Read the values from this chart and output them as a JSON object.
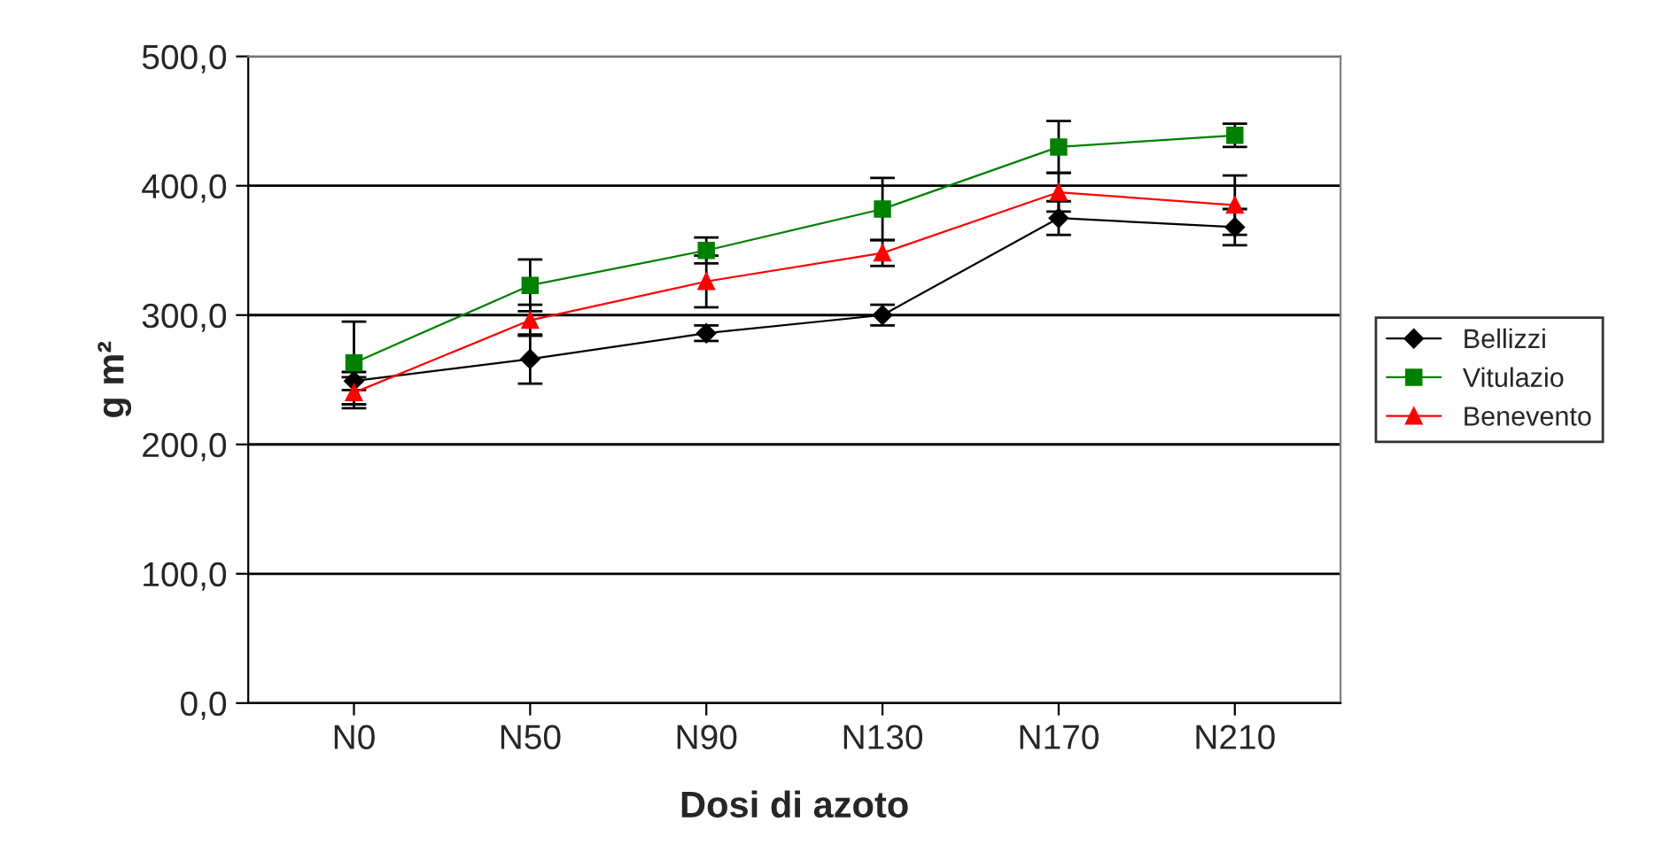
{
  "chart_data": {
    "type": "line",
    "xlabel": "Dosi di azoto",
    "ylabel": "g m²",
    "categories": [
      "N0",
      "N50",
      "N90",
      "N130",
      "N170",
      "N210"
    ],
    "ylim": [
      0,
      500
    ],
    "yticks": [
      {
        "value": 0,
        "label": "0,0"
      },
      {
        "value": 100,
        "label": "100,0"
      },
      {
        "value": 200,
        "label": "200,0"
      },
      {
        "value": 300,
        "label": "300,0"
      },
      {
        "value": 400,
        "label": "400,0"
      },
      {
        "value": 500,
        "label": "500,0"
      }
    ],
    "grid": "y",
    "legend": "right",
    "series": [
      {
        "name": "Bellizzi",
        "color": "#000000",
        "marker": "diamond",
        "values": [
          249,
          266,
          286,
          300,
          375,
          368
        ],
        "errors": [
          7,
          19,
          6,
          8,
          13,
          14
        ]
      },
      {
        "name": "Vitulazio",
        "color": "#008000",
        "marker": "square",
        "values": [
          263,
          323,
          350,
          382,
          430,
          439
        ],
        "errors": [
          32,
          20,
          10,
          24,
          20,
          9
        ]
      },
      {
        "name": "Benevento",
        "color": "#ff0000",
        "marker": "triangle",
        "values": [
          240,
          296,
          326,
          348,
          395,
          385
        ],
        "errors": [
          12,
          12,
          20,
          10,
          15,
          23
        ]
      }
    ]
  }
}
